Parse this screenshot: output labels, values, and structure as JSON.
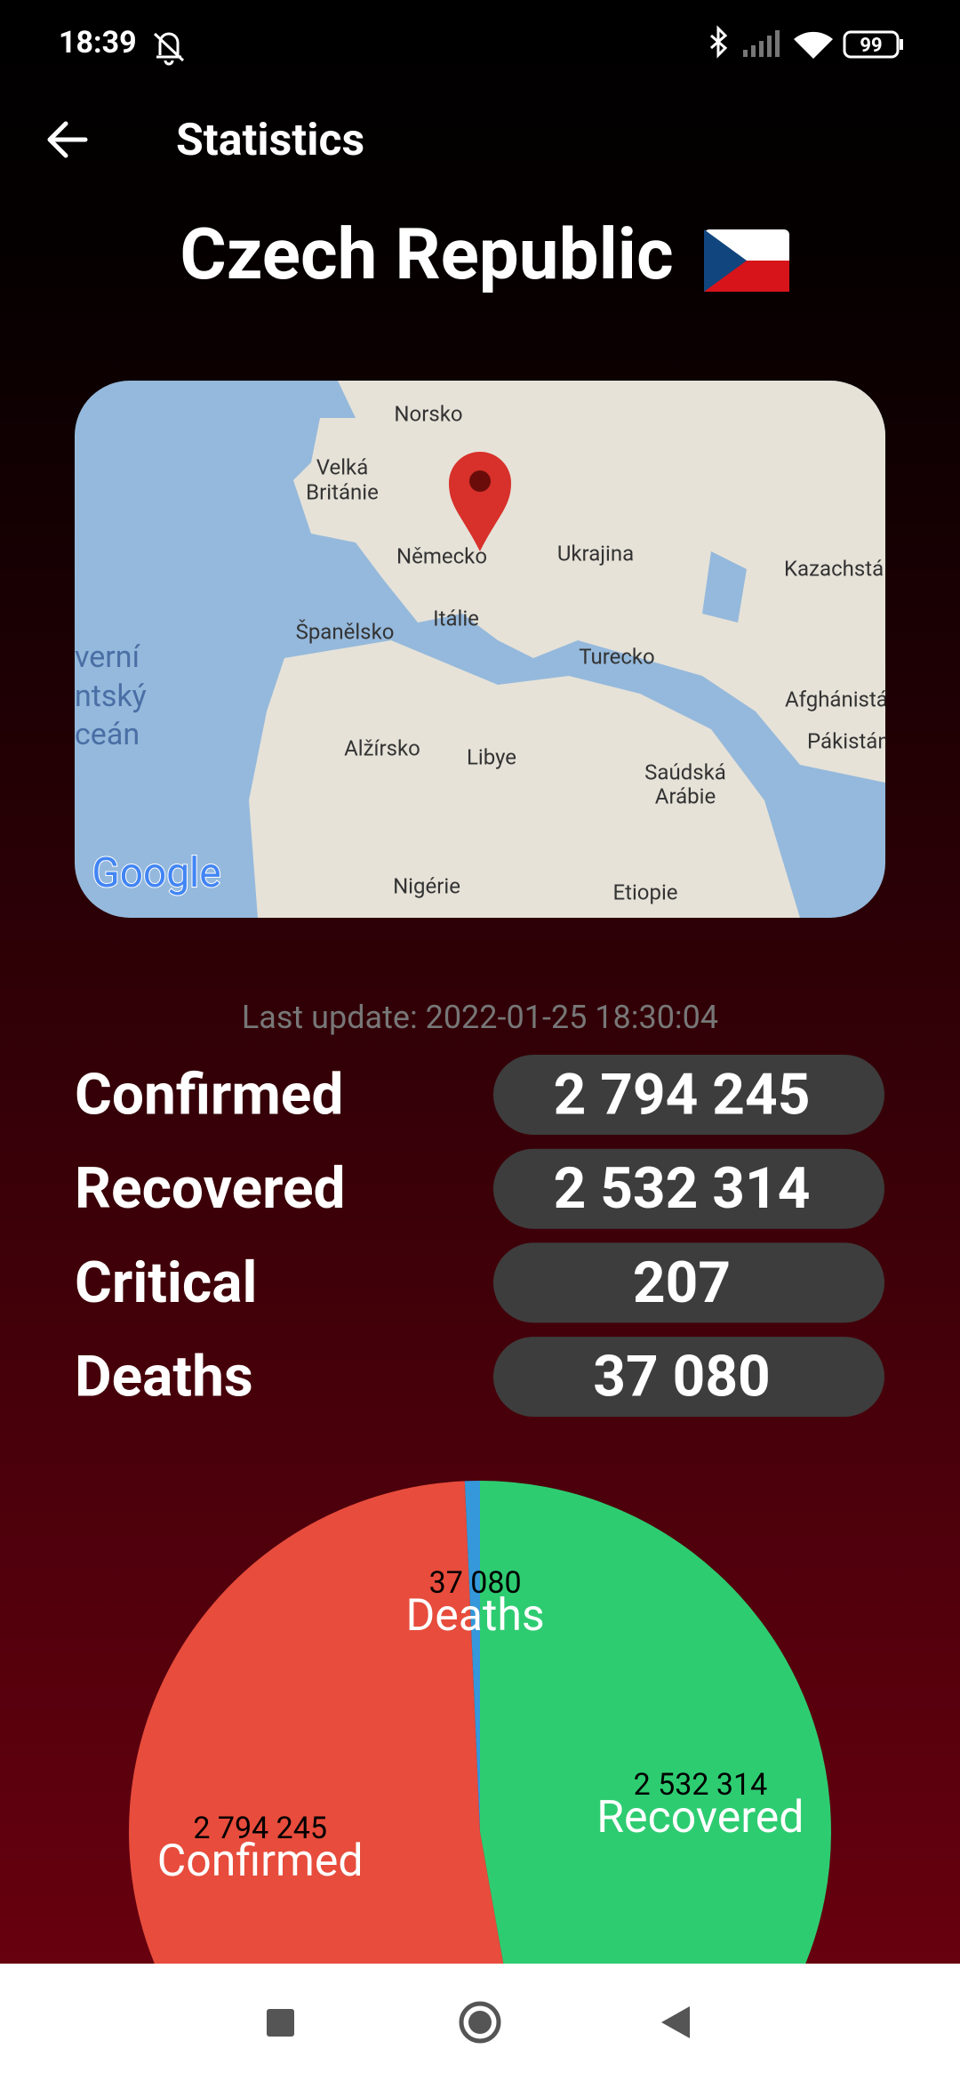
{
  "status_bar": {
    "time": "18:39",
    "battery": "99"
  },
  "header": {
    "title": "Statistics"
  },
  "country": {
    "name": "Czech Republic"
  },
  "map": {
    "labels": [
      "Norsko",
      "Velká",
      "Británie",
      "Německo",
      "Ukrajina",
      "Kazachstá",
      "Španělsko",
      "Itálie",
      "Turecko",
      "verní",
      "ntský",
      "ceán",
      "Afghánistá",
      "Pákistán",
      "Alžírsko",
      "Libye",
      "Saúdská",
      "Arábie",
      "Nigérie",
      "Etiopie"
    ],
    "logo": "Google"
  },
  "last_update": "Last update: 2022-01-25 18:30:04",
  "stats": [
    {
      "label": "Confirmed",
      "value": "2 794 245"
    },
    {
      "label": "Recovered",
      "value": "2 532 314"
    },
    {
      "label": "Critical",
      "value": "207"
    },
    {
      "label": "Deaths",
      "value": "37 080"
    }
  ],
  "chart_data": {
    "type": "pie",
    "categories": [
      "Recovered",
      "Confirmed",
      "Deaths"
    ],
    "values": [
      2532314,
      2794245,
      37080
    ],
    "value_labels": [
      "2 532 314",
      "2 794 245",
      "37 080"
    ],
    "colors": [
      "#2ecc71",
      "#e74c3c",
      "#3498db"
    ]
  }
}
